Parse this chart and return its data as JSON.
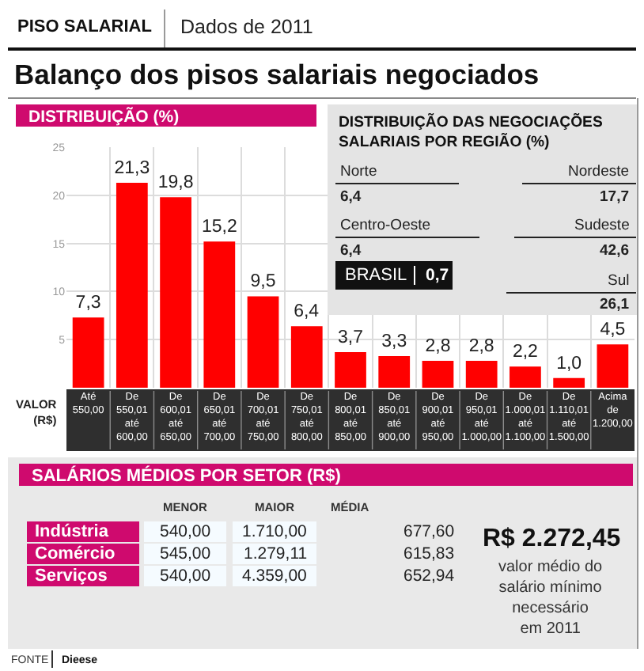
{
  "chart_data": [
    {
      "type": "other",
      "title": "Balanço dos pisos salariais negociados",
      "annotations": [
        "PISO SALARIAL",
        "Dados de 2011"
      ]
    },
    {
      "type": "bar",
      "title": "DISTRIBUIÇÃO (%)",
      "xlabel": "VALOR\n(R$)",
      "categories": [
        "Até\n550,00",
        "De\n550,01\naté\n600,00",
        "De\n600,01\naté\n650,00",
        "De\n650,01\naté\n700,00",
        "De\n700,01\naté\n750,00",
        "De\n750,01\naté\n800,00",
        "De\n800,01\naté\n850,00",
        "De\n850,01\naté\n900,00",
        "De\n900,01\naté\n950,00",
        "De\n950,01\naté\n1.000,00",
        "De\n1.000,01\naté\n1.100,00",
        "De\n1.110,01\naté\n1.500,00",
        "Acima\nde\n1.200,00"
      ],
      "values": [
        7.3,
        21.3,
        19.8,
        15.2,
        9.5,
        6.4,
        3.7,
        3.3,
        2.8,
        2.8,
        2.2,
        1.0,
        4.5
      ],
      "value_labels": [
        "7,3",
        "21,3",
        "19,8",
        "15,2",
        "9,5",
        "6,4",
        "3,7",
        "3,3",
        "2,8",
        "2,8",
        "2,2",
        "1,0",
        "4,5"
      ],
      "color": "#ff0000",
      "ylim": [
        0,
        25
      ],
      "yticks": [
        5,
        10,
        15,
        20,
        25
      ],
      "grid": true
    },
    {
      "type": "other",
      "title": "DISTRIBUIÇÃO DAS NEGOCIAÇÕES\nSALARIAIS POR REGIÃO (%)",
      "categories": [
        "Norte",
        "Nordeste",
        "Centro-Oeste",
        "Sudeste",
        "Sul",
        "BRASIL"
      ],
      "values": [
        6.4,
        17.7,
        6.4,
        42.6,
        26.1,
        0.7
      ],
      "value_labels": [
        "6,4",
        "17,7",
        "6,4",
        "42,6",
        "26,1",
        "0,7"
      ]
    },
    {
      "type": "other",
      "title": "SALÁRIOS MÉDIOS POR SETOR (R$)",
      "categories": [
        "Indústria",
        "Comércio",
        "Serviços"
      ],
      "series": [
        {
          "name": "MENOR",
          "values": [
            540.0,
            545.0,
            540.0
          ],
          "value_labels": [
            "540,00",
            "545,00",
            "540,00"
          ]
        },
        {
          "name": "MAIOR",
          "values": [
            1710.0,
            1279.11,
            4359.0
          ],
          "value_labels": [
            "1.710,00",
            "1.279,11",
            "4.359,00"
          ]
        },
        {
          "name": "MÉDIA",
          "values": [
            677.6,
            615.83,
            652.94
          ],
          "value_labels": [
            "677,60",
            "615,83",
            "652,94"
          ]
        }
      ],
      "annotations": [
        "R$ 2.272,45",
        "valor médio do\nsalário mínimo\nnecessário\nem 2011",
        "FONTE",
        "Dieese"
      ]
    }
  ]
}
